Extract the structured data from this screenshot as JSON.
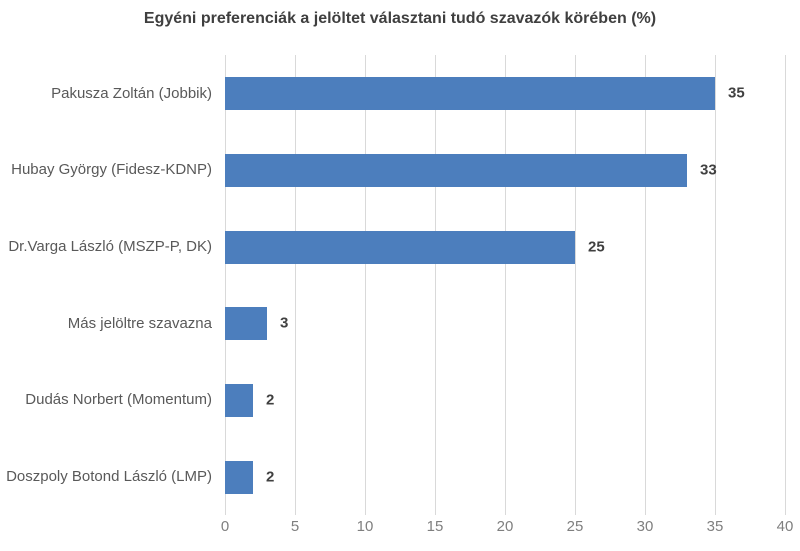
{
  "chart_data": {
    "type": "bar",
    "orientation": "horizontal",
    "title": "Egyéni preferenciák a jelöltet választani tudó szavazók körében (%)",
    "categories": [
      "Pakusza Zoltán (Jobbik)",
      "Hubay György (Fidesz-KDNP)",
      "Dr.Varga László (MSZP-P, DK)",
      "Más jelöltre szavazna",
      "Dudás Norbert (Momentum)",
      "Doszpoly Botond László (LMP)"
    ],
    "values": [
      35,
      33,
      25,
      3,
      2,
      2
    ],
    "value_labels": [
      "35",
      "33",
      "25",
      "3",
      "2",
      "2"
    ],
    "xlabel": "",
    "ylabel": "",
    "xlim": [
      0,
      40
    ],
    "x_ticks": [
      0,
      5,
      10,
      15,
      20,
      25,
      30,
      35,
      40
    ],
    "grid": true,
    "legend": false,
    "colors": {
      "bar": "#4C7EBD",
      "title": "#3f3f3f",
      "category_label": "#595959",
      "value_label": "#404040",
      "tick_label": "#7f7f7f",
      "gridline": "#d9d9d9",
      "background": "#ffffff"
    }
  }
}
